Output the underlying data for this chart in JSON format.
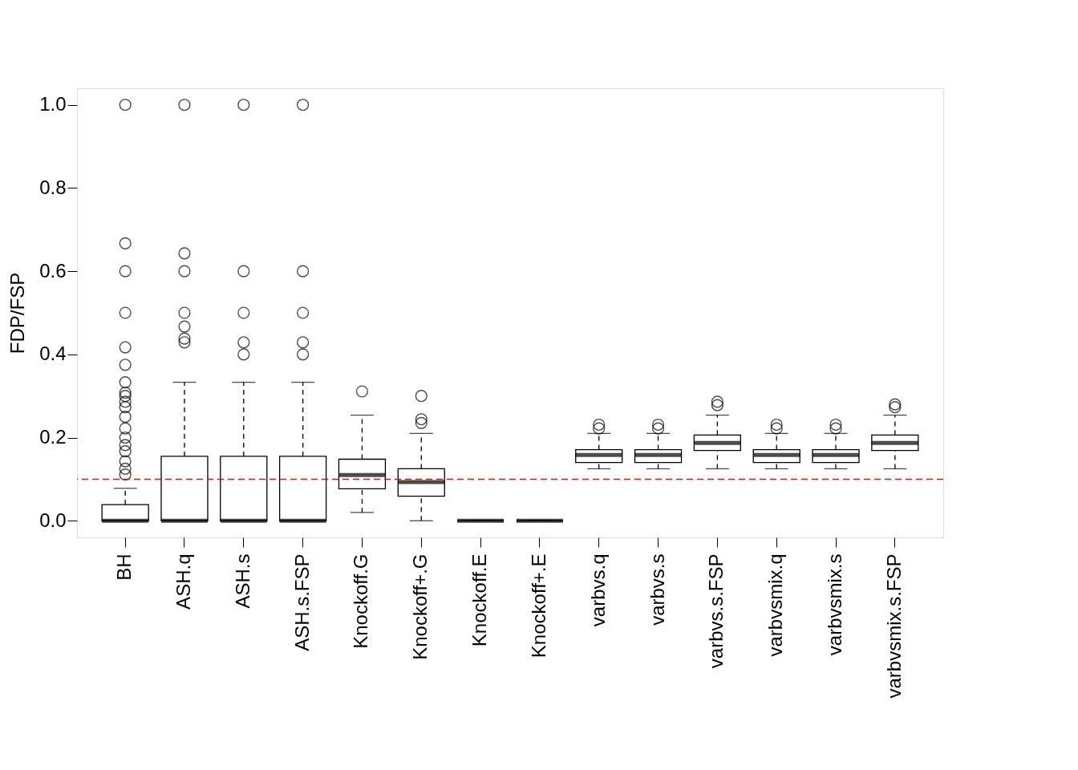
{
  "chart_data": {
    "type": "box",
    "ylabel": "FDP/FSP",
    "categories": [
      "BH",
      "ASH.q",
      "ASH.s",
      "ASH.s.FSP",
      "Knockoff.G",
      "Knockoff+.G",
      "Knockoff.E",
      "Knockoff+.E",
      "varbvs.q",
      "varbvs.s",
      "varbvs.s.FSP",
      "varbvsmix.q",
      "varbvsmix.s",
      "varbvsmix.s.FSP"
    ],
    "boxes": [
      {
        "low": 0,
        "q1": 0,
        "median": 0,
        "q3": 0.039,
        "high": 0.078,
        "outliers": [
          1.0,
          0.667,
          0.6,
          0.5,
          0.417,
          0.375,
          0.333,
          0.308,
          0.3,
          0.286,
          0.273,
          0.25,
          0.222,
          0.2,
          0.182,
          0.167,
          0.143,
          0.125,
          0.111
        ]
      },
      {
        "low": 0,
        "q1": 0,
        "median": 0,
        "q3": 0.155,
        "high": 0.333,
        "outliers": [
          1.0,
          0.643,
          0.6,
          0.5,
          0.467,
          0.438,
          0.429
        ]
      },
      {
        "low": 0,
        "q1": 0,
        "median": 0,
        "q3": 0.155,
        "high": 0.333,
        "outliers": [
          1.0,
          0.6,
          0.5,
          0.429,
          0.4
        ]
      },
      {
        "low": 0,
        "q1": 0,
        "median": 0,
        "q3": 0.155,
        "high": 0.333,
        "outliers": [
          1.0,
          0.6,
          0.5,
          0.429,
          0.4
        ]
      },
      {
        "low": 0.02,
        "q1": 0.077,
        "median": 0.11,
        "q3": 0.148,
        "high": 0.254,
        "outliers": [
          0.311
        ]
      },
      {
        "low": 0,
        "q1": 0.059,
        "median": 0.093,
        "q3": 0.125,
        "high": 0.21,
        "outliers": [
          0.235,
          0.244,
          0.3
        ]
      },
      {
        "low": 0,
        "q1": 0,
        "median": 0,
        "q3": 0,
        "high": 0
      },
      {
        "low": 0,
        "q1": 0,
        "median": 0,
        "q3": 0,
        "high": 0
      },
      {
        "low": 0.125,
        "q1": 0.14,
        "median": 0.158,
        "q3": 0.171,
        "high": 0.21,
        "outliers": [
          0.222,
          0.231
        ]
      },
      {
        "low": 0.125,
        "q1": 0.14,
        "median": 0.158,
        "q3": 0.171,
        "high": 0.21,
        "outliers": [
          0.222,
          0.231
        ]
      },
      {
        "low": 0.125,
        "q1": 0.169,
        "median": 0.187,
        "q3": 0.206,
        "high": 0.254,
        "outliers": [
          0.278,
          0.286
        ]
      },
      {
        "low": 0.125,
        "q1": 0.14,
        "median": 0.158,
        "q3": 0.171,
        "high": 0.21,
        "outliers": [
          0.222,
          0.231
        ]
      },
      {
        "low": 0.125,
        "q1": 0.14,
        "median": 0.158,
        "q3": 0.171,
        "high": 0.21,
        "outliers": [
          0.222,
          0.231
        ]
      },
      {
        "low": 0.125,
        "q1": 0.169,
        "median": 0.187,
        "q3": 0.206,
        "high": 0.254,
        "outliers": [
          0.273,
          0.28
        ]
      }
    ],
    "ylim": [
      -0.04,
      1.04
    ],
    "yticks": [
      {
        "value": 0,
        "label": "0.0"
      },
      {
        "value": 0.2,
        "label": "0.2"
      },
      {
        "value": 0.4,
        "label": "0.4"
      },
      {
        "value": 0.6,
        "label": "0.6"
      },
      {
        "value": 0.8,
        "label": "0.8"
      },
      {
        "value": 1.0,
        "label": "1.0"
      }
    ],
    "ref_lines": [
      {
        "axis": "y",
        "value": 0.1,
        "color": "#ff0000",
        "line_style": "dashed"
      }
    ],
    "grid": false
  }
}
